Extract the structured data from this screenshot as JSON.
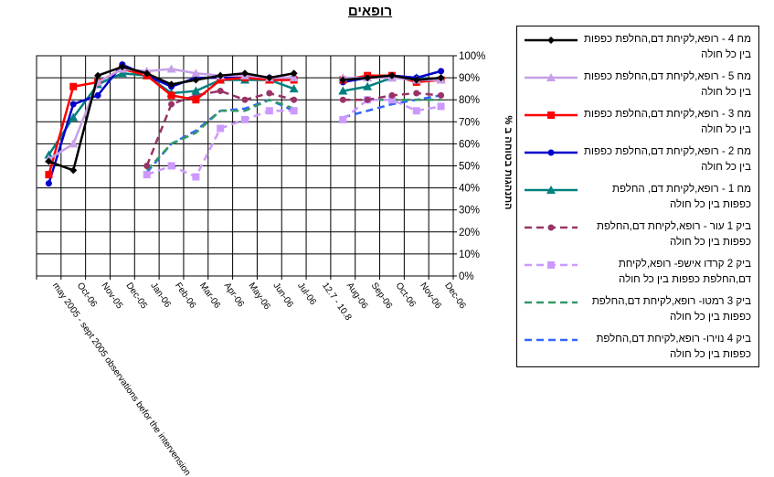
{
  "chart_data": {
    "type": "line",
    "title": "רופאים",
    "ylabel": "התנהגות בטוחה ב %",
    "xlabel": "",
    "ylim": [
      0,
      100
    ],
    "yticks": [
      "0%",
      "10%",
      "20%",
      "30%",
      "40%",
      "50%",
      "60%",
      "70%",
      "80%",
      "90%",
      "100%"
    ],
    "categories": [
      "may 2005 - sept 2005 observations befor the intervension",
      "Oct-06",
      "Nov-05",
      "Dec-05",
      "Jan-06",
      "Feb-06",
      "Mar-06",
      "Apr-06",
      "May-06",
      "Jun-06",
      "Jul-06",
      "12.7 - 10.8",
      "Aug-06",
      "Sep-06",
      "Oct-06",
      "Nov-06",
      "Dec-06"
    ],
    "legend_position": "right",
    "series": [
      {
        "name": "מח 4 - רופא,לקיחת דם,החלפת כפפות בין כל חולה",
        "color": "#000000",
        "marker": "diamond",
        "dash": "solid",
        "values": [
          52,
          48,
          91,
          95,
          92,
          87,
          89,
          91,
          92,
          90,
          92,
          null,
          89,
          90,
          91,
          89,
          90
        ]
      },
      {
        "name": "מח 5 - רופא,לקיחת דם,החלפת כפפות בין כל חולה",
        "color": "#c6a0e8",
        "marker": "triangle",
        "dash": "solid",
        "values": [
          53,
          60,
          88,
          94,
          93,
          94,
          92,
          91,
          91,
          90,
          90,
          null,
          90,
          90,
          90,
          89,
          89
        ]
      },
      {
        "name": "מח 3 - רופא,לקיחת דם,החלפת כפפות בין כל חולה",
        "color": "#ff0000",
        "marker": "square",
        "dash": "solid",
        "values": [
          46,
          86,
          88,
          94,
          91,
          82,
          80,
          89,
          90,
          89,
          89,
          null,
          89,
          91,
          91,
          88,
          89
        ]
      },
      {
        "name": "מח 2 - רופא,לקיחת דם,החלפת כפפות בין כל חולה",
        "color": "#0000cc",
        "marker": "circle",
        "dash": "solid",
        "values": [
          42,
          78,
          82,
          96,
          91,
          86,
          90,
          90,
          91,
          90,
          90,
          null,
          88,
          90,
          91,
          90,
          93
        ]
      },
      {
        "name": "מח 1 - רופא,לקיחת דם, החלפת כפפות בין כל חולה",
        "color": "#008080",
        "marker": "triangle",
        "dash": "solid",
        "values": [
          55,
          72,
          87,
          92,
          91,
          83,
          84,
          89,
          89,
          89,
          85,
          null,
          84,
          86,
          90,
          90,
          89
        ]
      },
      {
        "name": "ביק 1 עור - רופא,לקיחת דם,החלפת כפפות בין כל חולה",
        "color": "#993366",
        "marker": "circle",
        "dash": "dashed",
        "values": [
          null,
          null,
          null,
          null,
          50,
          78,
          82,
          84,
          80,
          83,
          80,
          null,
          80,
          80,
          82,
          83,
          82
        ]
      },
      {
        "name": "ביק 2 קרדו אישפ- רופא,לקיחת דם,החלפת כפפות בין כל חולה",
        "color": "#cc99ff",
        "marker": "square",
        "dash": "dashed",
        "values": [
          null,
          null,
          null,
          null,
          46,
          50,
          45,
          67,
          71,
          75,
          75,
          null,
          71,
          80,
          80,
          75,
          77
        ]
      },
      {
        "name": "ביק 3 רמטו- רופא,לקיחת דם,החלפת כפפות בין כל חולה",
        "color": "#339966",
        "marker": "none",
        "dash": "dashed",
        "values": [
          null,
          null,
          null,
          null,
          48,
          60,
          65,
          75,
          75,
          80,
          76,
          null,
          80,
          80,
          80,
          80,
          80
        ]
      },
      {
        "name": "ביק 4 נוירו- רופא,לקיחת דם,החלפת כפפות בין כל חולה",
        "color": "#3366ff",
        "marker": "none",
        "dash": "dashed",
        "values": [
          null,
          null,
          null,
          null,
          47,
          60,
          66,
          75,
          76,
          80,
          75,
          null,
          72,
          75,
          78,
          80,
          82
        ]
      }
    ]
  }
}
